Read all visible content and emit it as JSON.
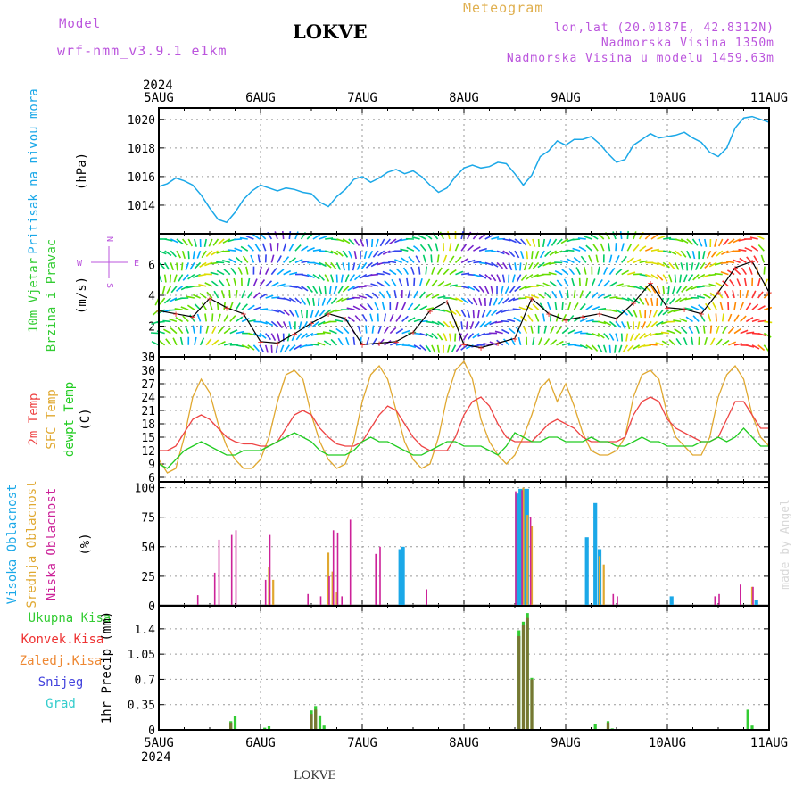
{
  "header": {
    "model_label": "Model",
    "model_name": "wrf-nmm_v3.9.1 e1km",
    "station": "LOKVE",
    "meteogram": "Meteogram",
    "lonlat": "lon,lat (20.0187E, 42.8312N)",
    "elevation": "Nadmorska Visina 1350m",
    "model_elevation": "Nadmorska Visina u modelu 1459.63m",
    "footer_station": "LOKVE",
    "credit": "made by Angel"
  },
  "colors": {
    "pressure": "#1ba8e8",
    "temp2m": "#ee4444",
    "sfc": "#e0a830",
    "dewpt": "#22cc22",
    "high": "#1ba8e8",
    "mid": "#e0a830",
    "low": "#cc2299",
    "precip_total": "#33cc33",
    "precip_conv": "#ee3333",
    "precip_frozen": "#ee8833",
    "snow": "#4444dd",
    "hail": "#33cccc",
    "wind_label": "#33cc33",
    "compass": "#bb55dd"
  },
  "chart_data": [
    {
      "type": "line",
      "panel": "pressure",
      "ylabel_main": "Pritisak na nivou mora",
      "ylabel_unit": "(hPa)",
      "yticks": [
        "1014",
        "1016",
        "1018",
        "1020"
      ],
      "ylim": [
        1012,
        1020.8
      ],
      "x_top_year": "2024",
      "x_tick_labels": [
        "5AUG",
        "6AUG",
        "7AUG",
        "8AUG",
        "9AUG",
        "10AUG",
        "11AUG"
      ],
      "xlim": [
        0,
        144
      ],
      "x": [
        0,
        2,
        4,
        6,
        8,
        10,
        12,
        14,
        16,
        18,
        20,
        22,
        24,
        26,
        28,
        30,
        32,
        34,
        36,
        38,
        40,
        42,
        44,
        46,
        48,
        50,
        52,
        54,
        56,
        58,
        60,
        62,
        64,
        66,
        68,
        70,
        72,
        74,
        76,
        78,
        80,
        82,
        84,
        86,
        88,
        90,
        92,
        94,
        96,
        98,
        100,
        102,
        104,
        106,
        108,
        110,
        112,
        114,
        116,
        118,
        120,
        122,
        124,
        126,
        128,
        130,
        132,
        134,
        136,
        138,
        140,
        142,
        144
      ],
      "series": [
        {
          "values": [
            1015.3,
            1015.5,
            1015.9,
            1015.7,
            1015.4,
            1014.7,
            1013.8,
            1013.0,
            1012.8,
            1013.5,
            1014.4,
            1015.0,
            1015.4,
            1015.2,
            1015.0,
            1015.2,
            1015.1,
            1014.9,
            1014.8,
            1014.2,
            1013.9,
            1014.6,
            1015.1,
            1015.8,
            1016.0,
            1015.6,
            1015.9,
            1016.3,
            1016.5,
            1016.2,
            1016.4,
            1016.0,
            1015.4,
            1014.9,
            1015.2,
            1016.0,
            1016.6,
            1016.8,
            1016.6,
            1016.7,
            1017.0,
            1016.9,
            1016.2,
            1015.4,
            1016.1,
            1017.4,
            1017.8,
            1018.5,
            1018.2,
            1018.6,
            1018.6,
            1018.8,
            1018.3,
            1017.6,
            1017.0,
            1017.2,
            1018.2,
            1018.6,
            1019.0,
            1018.7,
            1018.8,
            1018.9,
            1019.1,
            1018.7,
            1018.4,
            1017.7,
            1017.4,
            1018.0,
            1019.4,
            1020.1,
            1020.2,
            1020.0,
            1019.8
          ]
        }
      ]
    },
    {
      "type": "barbs",
      "panel": "wind",
      "ylabel_main": "10m Vjetar",
      "ylabel_sub": "Brzina i Pravac",
      "ylabel_unit": "(m/s)",
      "compass": {
        "n": "N",
        "s": "S",
        "e": "E",
        "w": "W"
      },
      "yticks": [
        "0",
        "2",
        "4",
        "6"
      ],
      "ylim": [
        0,
        8
      ],
      "xlim": [
        0,
        144
      ],
      "x": [
        0,
        4,
        8,
        12,
        16,
        20,
        24,
        28,
        32,
        36,
        40,
        44,
        48,
        52,
        56,
        60,
        64,
        68,
        72,
        76,
        80,
        84,
        88,
        92,
        96,
        100,
        104,
        108,
        112,
        116,
        120,
        124,
        128,
        132,
        136,
        140,
        144
      ],
      "series": [
        {
          "name": "speed",
          "values": [
            3.0,
            2.8,
            2.6,
            3.8,
            3.2,
            2.8,
            1.0,
            0.9,
            1.5,
            2.2,
            2.8,
            2.5,
            0.8,
            0.9,
            1.0,
            1.6,
            3.0,
            3.6,
            0.8,
            0.6,
            0.9,
            1.2,
            3.8,
            2.8,
            2.4,
            2.6,
            2.8,
            2.5,
            3.5,
            4.8,
            3.2,
            3.1,
            2.8,
            4.2,
            5.8,
            6.2,
            4.2
          ]
        }
      ]
    },
    {
      "type": "line",
      "panel": "temperature",
      "ylabels": [
        "2m Temp",
        "SFC Temp",
        "dewpt Temp"
      ],
      "ylabel_unit": "(C)",
      "yticks": [
        "6",
        "9",
        "12",
        "15",
        "18",
        "21",
        "24",
        "27",
        "30",
        "33"
      ],
      "ylim": [
        5,
        33
      ],
      "xlim": [
        0,
        144
      ],
      "x": [
        0,
        2,
        4,
        6,
        8,
        10,
        12,
        14,
        16,
        18,
        20,
        22,
        24,
        26,
        28,
        30,
        32,
        34,
        36,
        38,
        40,
        42,
        44,
        46,
        48,
        50,
        52,
        54,
        56,
        58,
        60,
        62,
        64,
        66,
        68,
        70,
        72,
        74,
        76,
        78,
        80,
        82,
        84,
        86,
        88,
        90,
        92,
        94,
        96,
        98,
        100,
        102,
        104,
        106,
        108,
        110,
        112,
        114,
        116,
        118,
        120,
        122,
        124,
        126,
        128,
        130,
        132,
        134,
        136,
        138,
        140,
        142,
        144
      ],
      "series": [
        {
          "name": "2m Temp",
          "values": [
            12,
            12,
            13,
            16,
            19,
            20,
            19,
            17,
            15,
            14,
            13.5,
            13.5,
            13,
            13,
            14,
            17,
            20,
            21,
            20,
            17,
            15,
            13.5,
            13,
            13,
            14,
            17,
            20,
            22,
            21,
            18,
            15,
            13,
            12,
            12,
            12,
            15,
            20,
            23,
            24,
            22,
            18,
            15,
            14,
            14,
            14,
            16,
            18,
            19,
            18,
            17,
            15,
            14,
            14,
            14,
            14,
            15,
            20,
            23,
            24,
            23,
            19,
            17,
            16,
            15,
            14,
            14,
            15,
            19,
            23,
            23,
            20,
            17,
            17
          ]
        },
        {
          "name": "SFC Temp",
          "values": [
            10,
            7,
            8,
            15,
            24,
            28,
            25,
            18,
            13,
            10,
            8,
            8,
            10,
            15,
            23,
            29,
            30,
            28,
            20,
            14,
            10,
            8,
            9,
            14,
            23,
            29,
            31,
            28,
            21,
            14,
            10,
            8,
            9,
            15,
            24,
            30,
            32,
            28,
            19,
            14,
            11,
            9,
            11,
            15,
            20,
            26,
            28,
            23,
            27,
            22,
            16,
            12,
            11,
            11,
            12,
            15,
            24,
            29,
            30,
            28,
            20,
            15,
            13,
            11,
            11,
            15,
            24,
            29,
            31,
            28,
            20,
            15,
            13
          ]
        },
        {
          "name": "dewpt Temp",
          "values": [
            9,
            8,
            10,
            12,
            13,
            14,
            13,
            12,
            11,
            11,
            12,
            12,
            12,
            13,
            14,
            15,
            16,
            15,
            14,
            12,
            11,
            11,
            11,
            12,
            14,
            15,
            14,
            14,
            13,
            12,
            11,
            11,
            12,
            13,
            14,
            14,
            13,
            13,
            13,
            12,
            11,
            13,
            16,
            15,
            14,
            14,
            15,
            15,
            14,
            14,
            14,
            15,
            14,
            14,
            13,
            13,
            14,
            15,
            14,
            14,
            13,
            13,
            13,
            13,
            14,
            14,
            15,
            14,
            15,
            17,
            15,
            13,
            13
          ]
        }
      ]
    },
    {
      "type": "bar",
      "panel": "clouds",
      "ylabels": [
        "Visoka Oblacnost",
        "Srednja Oblacnost",
        "Niska Oblacnost"
      ],
      "ylabel_unit": "(%)",
      "yticks": [
        "0",
        "25",
        "50",
        "75",
        "100"
      ],
      "ylim": [
        0,
        105
      ],
      "xlim": [
        0,
        144
      ],
      "series": [
        {
          "name": "Visoka Oblacnost",
          "points": [
            [
              57,
              48
            ],
            [
              57.6,
              50
            ],
            [
              84.5,
              95
            ],
            [
              85.3,
              99
            ],
            [
              86.1,
              99
            ],
            [
              86.9,
              99
            ],
            [
              101,
              58
            ],
            [
              103,
              87
            ],
            [
              104,
              48
            ],
            [
              121,
              8
            ],
            [
              141,
              5
            ]
          ]
        },
        {
          "name": "Srednja Oblacnost",
          "points": [
            [
              26,
              33
            ],
            [
              27,
              22
            ],
            [
              40,
              45
            ],
            [
              41,
              29
            ],
            [
              42,
              12
            ],
            [
              86,
              100
            ],
            [
              87,
              77
            ],
            [
              88,
              68
            ],
            [
              104,
              42
            ],
            [
              105,
              35
            ],
            [
              140,
              16
            ]
          ]
        },
        {
          "name": "Niska Oblacnost",
          "points": [
            [
              9,
              9
            ],
            [
              13,
              28
            ],
            [
              14,
              56
            ],
            [
              17,
              60
            ],
            [
              18,
              64
            ],
            [
              25,
              22
            ],
            [
              26,
              60
            ],
            [
              35,
              10
            ],
            [
              38,
              8
            ],
            [
              40,
              25
            ],
            [
              41,
              64
            ],
            [
              42,
              62
            ],
            [
              43,
              8
            ],
            [
              45,
              73
            ],
            [
              51,
              44
            ],
            [
              52,
              50
            ],
            [
              63,
              14
            ],
            [
              84,
              97
            ],
            [
              85.5,
              98
            ],
            [
              87.5,
              75
            ],
            [
              107,
              10
            ],
            [
              108,
              8
            ],
            [
              131,
              8
            ],
            [
              132,
              10
            ],
            [
              137,
              18
            ],
            [
              140,
              16
            ]
          ]
        }
      ]
    },
    {
      "type": "bar",
      "panel": "precipitation",
      "ylabels": [
        "Ukupna Kisa",
        "Konvek.Kisa",
        "Zaledj.Kisa",
        "Snijeg",
        "Grad"
      ],
      "ylabel_unit": "1hr Precip (mm)",
      "yticks": [
        "0",
        "0.35",
        "0.7",
        "1.05",
        "1.4"
      ],
      "ylim": [
        0,
        1.72
      ],
      "x_tick_labels": [
        "5AUG",
        "6AUG",
        "7AUG",
        "8AUG",
        "9AUG",
        "10AUG",
        "11AUG"
      ],
      "x_bottom_year": "2024",
      "xlim": [
        0,
        144
      ],
      "series": [
        {
          "name": "Ukupna Kisa",
          "points": [
            [
              17,
              0.12
            ],
            [
              18,
              0.19
            ],
            [
              25,
              0.03
            ],
            [
              26,
              0.05
            ],
            [
              36,
              0.27
            ],
            [
              37,
              0.33
            ],
            [
              38,
              0.2
            ],
            [
              39,
              0.06
            ],
            [
              85,
              1.38
            ],
            [
              86,
              1.5
            ],
            [
              87,
              1.62
            ],
            [
              88,
              0.72
            ],
            [
              103,
              0.08
            ],
            [
              106,
              0.12
            ],
            [
              107,
              0.02
            ],
            [
              139,
              0.28
            ],
            [
              140,
              0.06
            ]
          ]
        },
        {
          "name": "Konvek.Kisa",
          "points": [
            [
              17,
              0.1
            ],
            [
              36,
              0.22
            ],
            [
              37,
              0.28
            ],
            [
              85,
              1.3
            ],
            [
              86,
              1.45
            ],
            [
              87,
              1.55
            ],
            [
              88,
              0.7
            ],
            [
              106,
              0.1
            ]
          ]
        },
        {
          "name": "Zaledj.Kisa",
          "points": []
        },
        {
          "name": "Snijeg",
          "points": []
        },
        {
          "name": "Grad",
          "points": []
        }
      ]
    }
  ]
}
